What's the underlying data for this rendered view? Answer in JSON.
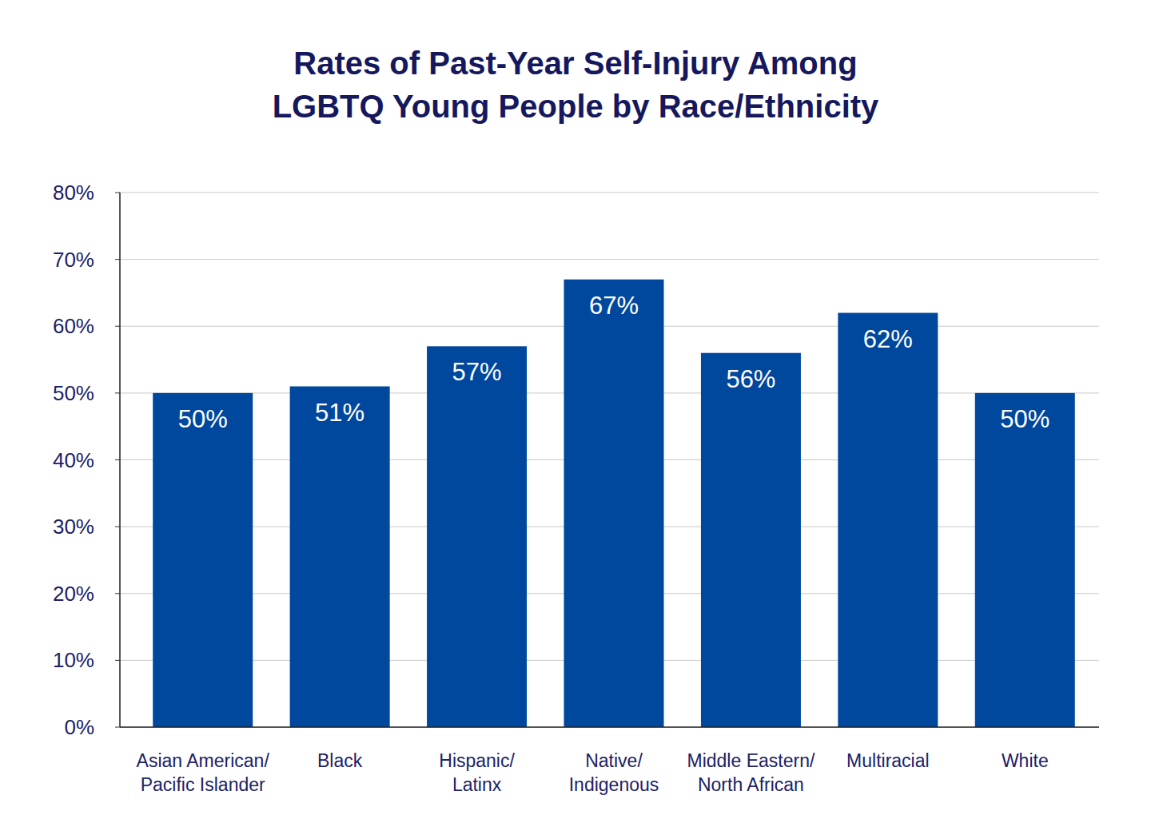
{
  "chart_data": {
    "type": "bar",
    "title": "Rates of Past-Year Self-Injury Among\nLGBTQ Young People by Race/Ethnicity",
    "categories": [
      "Asian American/\nPacific Islander",
      "Black",
      "Hispanic/\nLatinx",
      "Native/\nIndigenous",
      "Middle Eastern/\nNorth African",
      "Multiracial",
      "White"
    ],
    "values": [
      50,
      51,
      57,
      67,
      56,
      62,
      50
    ],
    "value_labels": [
      "50%",
      "51%",
      "57%",
      "67%",
      "56%",
      "62%",
      "50%"
    ],
    "color": "#00479e",
    "ylim": [
      0,
      80
    ],
    "yticks": [
      {
        "value": 0,
        "label": "0%"
      },
      {
        "value": 10,
        "label": "10%"
      },
      {
        "value": 20,
        "label": "20%"
      },
      {
        "value": 30,
        "label": "30%"
      },
      {
        "value": 40,
        "label": "40%"
      },
      {
        "value": 50,
        "label": "50%"
      },
      {
        "value": 60,
        "label": "60%"
      },
      {
        "value": 70,
        "label": "70%"
      },
      {
        "value": 80,
        "label": "80%"
      }
    ],
    "grid": true,
    "data_labels": true
  }
}
